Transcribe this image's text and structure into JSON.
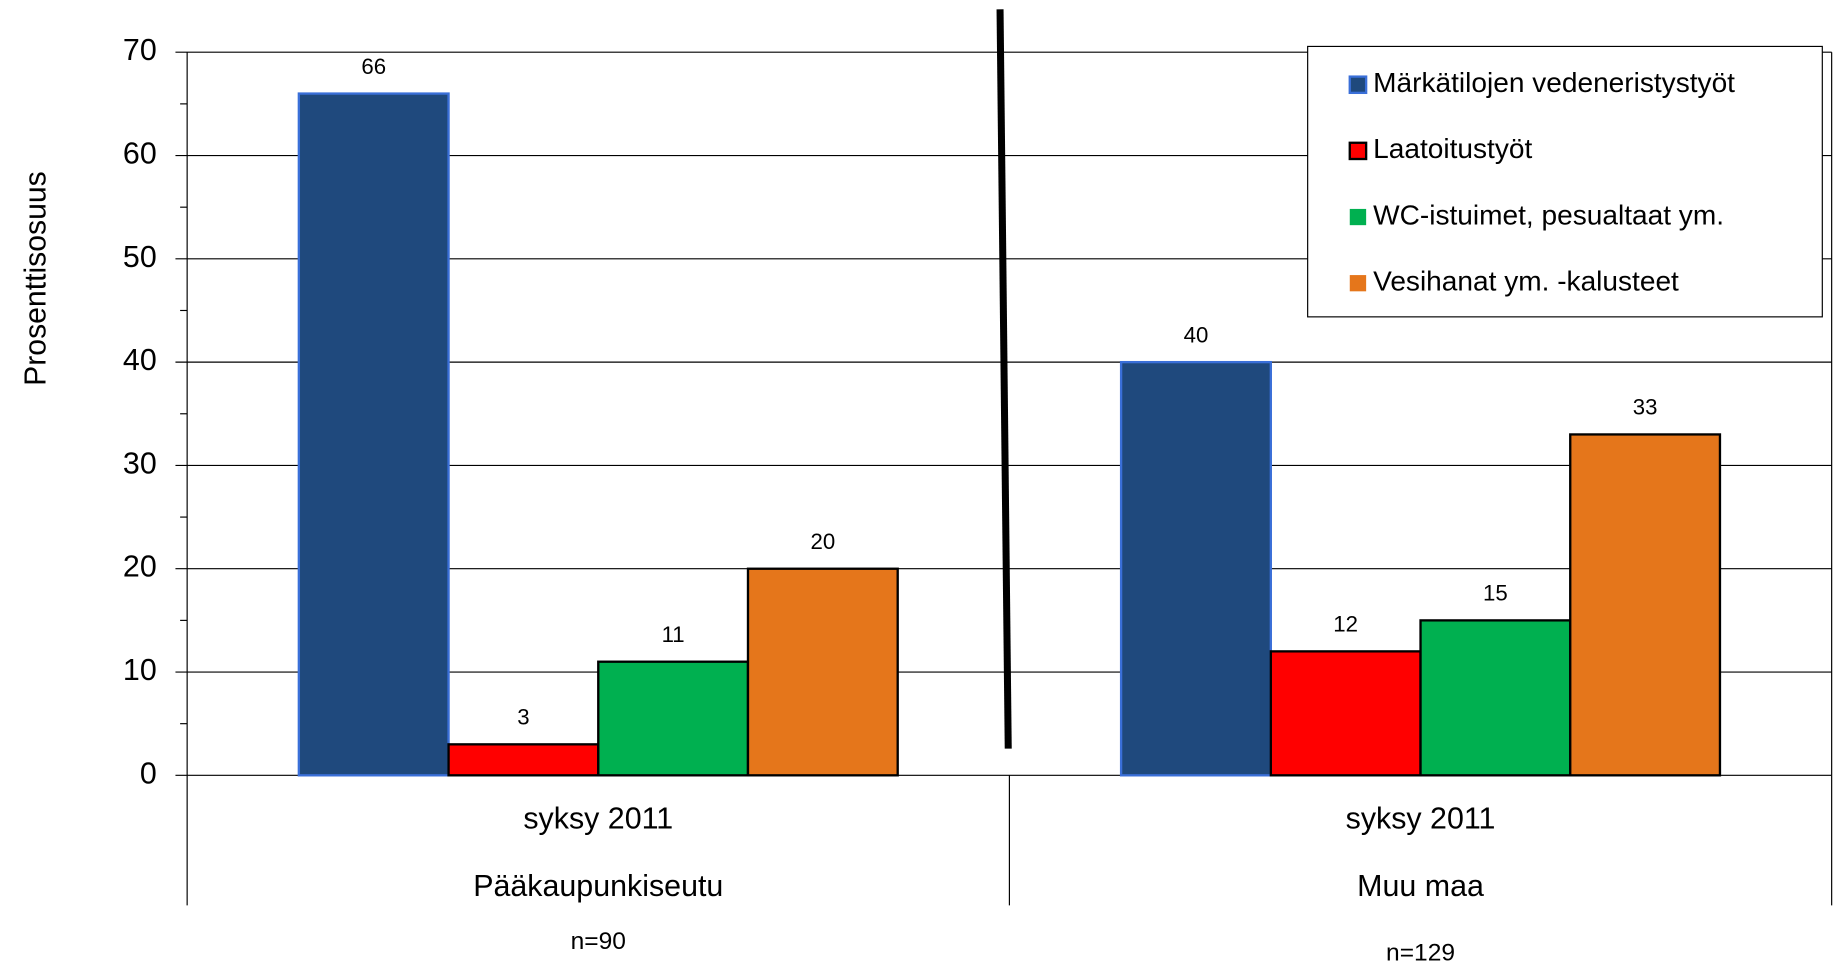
{
  "chart_data": {
    "type": "bar",
    "y_label": "Prosenttisosuus",
    "categories": [
      "syksy 2011",
      "syksy 2011"
    ],
    "groups": [
      "Pääkaupunkiseutu",
      "Muu maa"
    ],
    "annotations": [
      "n=90",
      "n=129"
    ],
    "series": [
      {
        "name": "Märkätilojen vedeneristystyöt",
        "color": "#1f497d",
        "values": [
          66,
          40
        ]
      },
      {
        "name": "Laatoitustyöt",
        "color": "#ff0000",
        "values": [
          3,
          12
        ]
      },
      {
        "name": "WC-istuimet, pesualtaat ym.",
        "color": "#00b050",
        "values": [
          11,
          15
        ]
      },
      {
        "name": "Vesihanat ym. -kalusteet",
        "color": "#e5761b",
        "values": [
          20,
          33
        ]
      }
    ],
    "ylim": [
      0,
      70
    ],
    "yticks": [
      0,
      10,
      20,
      30,
      40,
      50,
      60,
      70
    ],
    "grid": true,
    "legend": "upper right"
  }
}
